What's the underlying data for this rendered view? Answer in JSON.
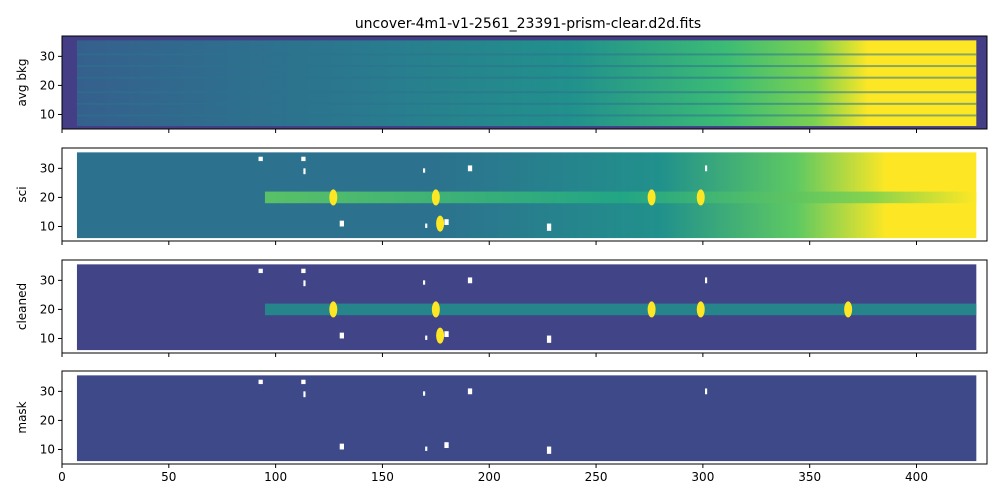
{
  "figure": {
    "title": "uncover-4m1-v1-2561_23391-prism-clear.d2d.fits"
  },
  "colors": {
    "background": "#ffffff",
    "axes_frame": "#000000",
    "colormap": "viridis",
    "viridis_low": "#440154",
    "viridis_mid": "#21918c",
    "viridis_high": "#fde725"
  },
  "chart_data": [
    {
      "type": "heatmap",
      "panel": "avg-bkg",
      "xlabel": "",
      "ylabel": "avg bkg",
      "xlim": [
        0,
        433
      ],
      "ylim": [
        5,
        37
      ],
      "x_ticks": [
        0,
        50,
        100,
        150,
        200,
        250,
        300,
        350,
        400
      ],
      "x_tick_labels_visible": false,
      "y_ticks": [
        10,
        20,
        30
      ],
      "y_tick_labels": [
        "10",
        "20",
        "30"
      ],
      "colormap": "viridis",
      "trace_rows": [],
      "features": [],
      "masked_gaps": [],
      "bright_region_start_x": 360,
      "x_extent": [
        7,
        428
      ]
    },
    {
      "type": "heatmap",
      "panel": "sci",
      "xlabel": "",
      "ylabel": "sci",
      "xlim": [
        0,
        433
      ],
      "ylim": [
        5,
        37
      ],
      "x_ticks": [
        0,
        50,
        100,
        150,
        200,
        250,
        300,
        350,
        400
      ],
      "x_tick_labels_visible": false,
      "y_ticks": [
        10,
        20,
        30
      ],
      "y_tick_labels": [
        "10",
        "20",
        "30"
      ],
      "colormap": "viridis",
      "trace_rows": [
        18,
        22
      ],
      "features": [
        {
          "x": 127,
          "y": 20
        },
        {
          "x": 175,
          "y": 20
        },
        {
          "x": 276,
          "y": 20
        },
        {
          "x": 299,
          "y": 20
        },
        {
          "x": 177,
          "y": 11
        }
      ],
      "masked_gaps": [
        {
          "x": [
            92,
            94
          ],
          "y": [
            32.5,
            34
          ]
        },
        {
          "x": [
            112,
            114
          ],
          "y": [
            32.5,
            34
          ]
        },
        {
          "x": [
            113,
            114
          ],
          "y": [
            28,
            30
          ]
        },
        {
          "x": [
            169,
            170
          ],
          "y": [
            28.5,
            30
          ]
        },
        {
          "x": [
            190,
            192
          ],
          "y": [
            29,
            31
          ]
        },
        {
          "x": [
            130,
            132
          ],
          "y": [
            10,
            12
          ]
        },
        {
          "x": [
            170,
            171
          ],
          "y": [
            9.5,
            11
          ]
        },
        {
          "x": [
            179,
            181
          ],
          "y": [
            10.5,
            12.5
          ]
        },
        {
          "x": [
            227,
            229
          ],
          "y": [
            8.5,
            11
          ]
        },
        {
          "x": [
            301,
            302
          ],
          "y": [
            29,
            31
          ]
        }
      ],
      "bright_region_start_x": 380,
      "x_extent": [
        7,
        428
      ]
    },
    {
      "type": "heatmap",
      "panel": "cleaned",
      "xlabel": "",
      "ylabel": "cleaned",
      "xlim": [
        0,
        433
      ],
      "ylim": [
        5,
        37
      ],
      "x_ticks": [
        0,
        50,
        100,
        150,
        200,
        250,
        300,
        350,
        400
      ],
      "x_tick_labels_visible": false,
      "y_ticks": [
        10,
        20,
        30
      ],
      "y_tick_labels": [
        "10",
        "20",
        "30"
      ],
      "colormap": "viridis",
      "trace_rows": [
        18,
        22
      ],
      "features": [
        {
          "x": 127,
          "y": 20
        },
        {
          "x": 175,
          "y": 20
        },
        {
          "x": 276,
          "y": 20
        },
        {
          "x": 299,
          "y": 20
        },
        {
          "x": 368,
          "y": 20
        },
        {
          "x": 177,
          "y": 11
        }
      ],
      "masked_gaps": [
        {
          "x": [
            92,
            94
          ],
          "y": [
            32.5,
            34
          ]
        },
        {
          "x": [
            112,
            114
          ],
          "y": [
            32.5,
            34
          ]
        },
        {
          "x": [
            113,
            114
          ],
          "y": [
            28,
            30
          ]
        },
        {
          "x": [
            169,
            170
          ],
          "y": [
            28.5,
            30
          ]
        },
        {
          "x": [
            190,
            192
          ],
          "y": [
            29,
            31
          ]
        },
        {
          "x": [
            130,
            132
          ],
          "y": [
            10,
            12
          ]
        },
        {
          "x": [
            170,
            171
          ],
          "y": [
            9.5,
            11
          ]
        },
        {
          "x": [
            179,
            181
          ],
          "y": [
            10.5,
            12.5
          ]
        },
        {
          "x": [
            227,
            229
          ],
          "y": [
            8.5,
            11
          ]
        },
        {
          "x": [
            301,
            302
          ],
          "y": [
            29,
            31
          ]
        }
      ],
      "bright_region_start_x": null,
      "x_extent": [
        7,
        428
      ]
    },
    {
      "type": "heatmap",
      "panel": "mask",
      "xlabel": "",
      "ylabel": "mask",
      "xlim": [
        0,
        433
      ],
      "ylim": [
        5,
        37
      ],
      "x_ticks": [
        0,
        50,
        100,
        150,
        200,
        250,
        300,
        350,
        400
      ],
      "x_tick_labels_visible": true,
      "x_tick_labels": [
        "0",
        "50",
        "100",
        "150",
        "200",
        "250",
        "300",
        "350",
        "400"
      ],
      "y_ticks": [
        10,
        20,
        30
      ],
      "y_tick_labels": [
        "10",
        "20",
        "30"
      ],
      "colormap": "viridis",
      "trace_rows": [],
      "features": [],
      "masked_gaps": [
        {
          "x": [
            92,
            94
          ],
          "y": [
            32.5,
            34
          ]
        },
        {
          "x": [
            112,
            114
          ],
          "y": [
            32.5,
            34
          ]
        },
        {
          "x": [
            113,
            114
          ],
          "y": [
            28,
            30
          ]
        },
        {
          "x": [
            169,
            170
          ],
          "y": [
            28.5,
            30
          ]
        },
        {
          "x": [
            190,
            192
          ],
          "y": [
            29,
            31
          ]
        },
        {
          "x": [
            130,
            132
          ],
          "y": [
            10,
            12
          ]
        },
        {
          "x": [
            170,
            171
          ],
          "y": [
            9.5,
            11
          ]
        },
        {
          "x": [
            179,
            181
          ],
          "y": [
            10.5,
            12.5
          ]
        },
        {
          "x": [
            227,
            229
          ],
          "y": [
            8.5,
            11
          ]
        },
        {
          "x": [
            301,
            302
          ],
          "y": [
            29,
            31
          ]
        }
      ],
      "bright_region_start_x": null,
      "x_extent": [
        7,
        428
      ]
    }
  ]
}
